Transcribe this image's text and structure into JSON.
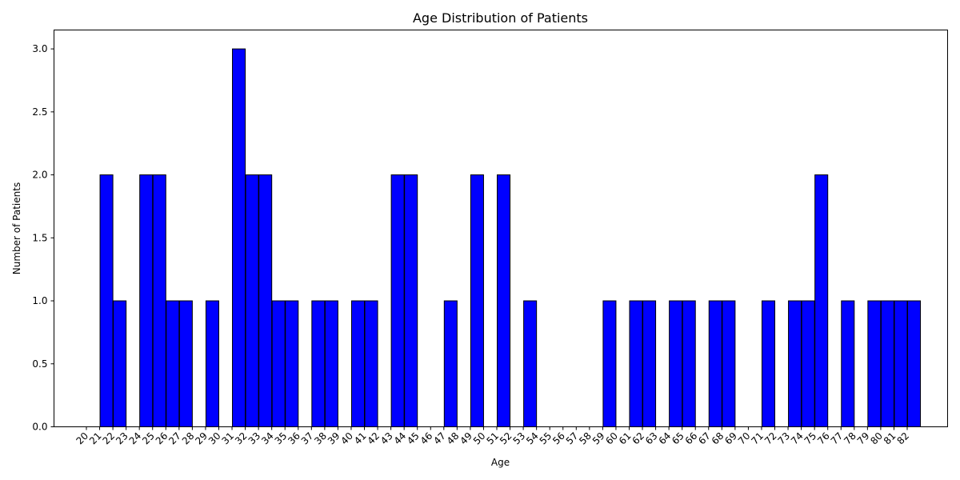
{
  "chart_data": {
    "type": "bar",
    "title": "Age Distribution of Patients",
    "xlabel": "Age",
    "ylabel": "Number of Patients",
    "ylim": [
      0,
      3.15
    ],
    "yticks": [
      "0.0",
      "0.5",
      "1.0",
      "1.5",
      "2.0",
      "2.5",
      "3.0"
    ],
    "categories": [
      "20",
      "21",
      "22",
      "23",
      "24",
      "25",
      "26",
      "27",
      "28",
      "29",
      "30",
      "31",
      "32",
      "33",
      "34",
      "35",
      "36",
      "37",
      "38",
      "39",
      "40",
      "41",
      "42",
      "43",
      "44",
      "45",
      "46",
      "47",
      "48",
      "49",
      "50",
      "51",
      "52",
      "53",
      "54",
      "55",
      "56",
      "57",
      "58",
      "59",
      "60",
      "61",
      "62",
      "63",
      "64",
      "65",
      "66",
      "67",
      "68",
      "69",
      "70",
      "71",
      "72",
      "73",
      "74",
      "75",
      "76",
      "77",
      "78",
      "79",
      "80",
      "81",
      "82"
    ],
    "values": [
      0,
      2,
      1,
      0,
      2,
      2,
      1,
      1,
      0,
      1,
      0,
      3,
      2,
      2,
      1,
      1,
      0,
      1,
      1,
      0,
      1,
      1,
      0,
      2,
      2,
      0,
      0,
      1,
      0,
      2,
      0,
      2,
      0,
      1,
      0,
      0,
      0,
      0,
      0,
      1,
      0,
      1,
      1,
      0,
      1,
      1,
      0,
      1,
      1,
      0,
      0,
      1,
      0,
      1,
      1,
      2,
      0,
      1,
      0,
      1,
      1,
      1,
      1
    ],
    "bar_color": "#0000ff",
    "edge_color": "#000000",
    "grid": false,
    "legend": "none"
  }
}
